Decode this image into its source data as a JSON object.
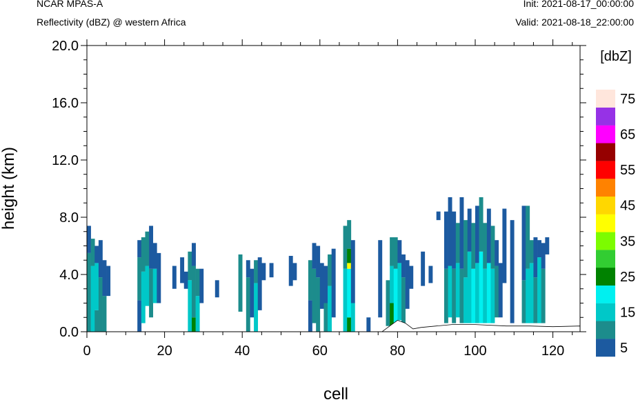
{
  "header": {
    "model": "NCAR MPAS-A",
    "field": "Reflectivity (dBZ) @ western Africa",
    "init": "Init: 2021-08-17_00:00:00",
    "valid": "Valid: 2021-08-18_22:00:00"
  },
  "colors": {
    "levels": [
      "#1c5aa0",
      "#1c8c8c",
      "#00c8c8",
      "#00f0f0",
      "#008200",
      "#32cd32",
      "#7cfc00",
      "#ffff00",
      "#ffd700",
      "#ff8200",
      "#ff0000",
      "#960000",
      "#ff00ff",
      "#9632e6",
      "#ffe6dc"
    ],
    "terrain": "#ffffff"
  },
  "chart_data": {
    "type": "heatmap",
    "title": "",
    "xlabel": "cell",
    "ylabel": "height (km)",
    "xlim": [
      0,
      127
    ],
    "ylim": [
      0,
      20
    ],
    "xticks": [
      0,
      20,
      40,
      60,
      80,
      100,
      120
    ],
    "yticks": [
      "0.0",
      "4.0",
      "8.0",
      "12.0",
      "16.0",
      "20.0"
    ],
    "grid": false,
    "legend": {
      "title": "[dbZ]",
      "placement": "right",
      "levels": [
        5,
        10,
        15,
        20,
        25,
        30,
        35,
        40,
        45,
        50,
        55,
        60,
        65,
        70,
        75
      ],
      "labels": [
        "5",
        "15",
        "25",
        "35",
        "45",
        "55",
        "65",
        "75"
      ]
    },
    "columns": [
      {
        "cell": 0.5,
        "segments": [
          [
            0.0,
            5.5,
            10
          ],
          [
            5.5,
            7.4,
            5
          ]
        ]
      },
      {
        "cell": 1.5,
        "segments": [
          [
            0.0,
            4.6,
            15
          ],
          [
            4.6,
            6.5,
            10
          ]
        ]
      },
      {
        "cell": 2.5,
        "segments": [
          [
            0.0,
            1.5,
            10
          ],
          [
            1.5,
            4.8,
            15
          ],
          [
            4.8,
            6.0,
            5
          ]
        ]
      },
      {
        "cell": 3.5,
        "segments": [
          [
            0.0,
            3.8,
            10
          ],
          [
            3.8,
            6.4,
            5
          ]
        ]
      },
      {
        "cell": 4.5,
        "segments": [
          [
            0.0,
            2.5,
            10
          ],
          [
            2.5,
            5.0,
            5
          ]
        ]
      },
      {
        "cell": 5.5,
        "segments": [
          [
            2.5,
            4.6,
            5
          ]
        ]
      },
      {
        "cell": 13.5,
        "segments": [
          [
            0.0,
            2.2,
            5
          ],
          [
            2.2,
            5.2,
            10
          ],
          [
            5.2,
            6.4,
            5
          ]
        ]
      },
      {
        "cell": 14.5,
        "segments": [
          [
            0.6,
            4.2,
            15
          ],
          [
            4.2,
            6.6,
            10
          ]
        ]
      },
      {
        "cell": 15.5,
        "segments": [
          [
            1.8,
            4.6,
            15
          ],
          [
            4.6,
            7.0,
            10
          ]
        ]
      },
      {
        "cell": 16.5,
        "segments": [
          [
            1.0,
            4.4,
            10
          ],
          [
            4.4,
            7.4,
            5
          ]
        ]
      },
      {
        "cell": 17.5,
        "segments": [
          [
            2.0,
            4.4,
            15
          ],
          [
            4.4,
            6.2,
            5
          ]
        ]
      },
      {
        "cell": 18.5,
        "segments": [
          [
            2.0,
            5.5,
            5
          ]
        ]
      },
      {
        "cell": 22.5,
        "segments": [
          [
            3.0,
            4.6,
            5
          ]
        ]
      },
      {
        "cell": 24.5,
        "segments": [
          [
            3.4,
            5.2,
            5
          ]
        ]
      },
      {
        "cell": 25.5,
        "segments": [
          [
            3.0,
            4.2,
            5
          ]
        ]
      },
      {
        "cell": 26.5,
        "segments": [
          [
            0.0,
            3.6,
            15
          ],
          [
            3.6,
            5.6,
            10
          ]
        ]
      },
      {
        "cell": 27.5,
        "segments": [
          [
            0.0,
            1.0,
            25
          ],
          [
            1.0,
            4.6,
            10
          ],
          [
            4.6,
            6.2,
            5
          ]
        ]
      },
      {
        "cell": 28.5,
        "segments": [
          [
            0.0,
            2.5,
            15
          ],
          [
            2.5,
            4.4,
            10
          ]
        ]
      },
      {
        "cell": 29.5,
        "segments": [
          [
            2.0,
            4.4,
            5
          ]
        ]
      },
      {
        "cell": 33.5,
        "segments": [
          [
            2.4,
            3.6,
            5
          ]
        ]
      },
      {
        "cell": 39.5,
        "segments": [
          [
            1.4,
            5.4,
            10
          ]
        ]
      },
      {
        "cell": 41.5,
        "segments": [
          [
            0.0,
            3.8,
            10
          ],
          [
            3.8,
            5.0,
            5
          ]
        ]
      },
      {
        "cell": 42.5,
        "segments": [
          [
            1.0,
            4.4,
            5
          ]
        ]
      },
      {
        "cell": 43.5,
        "segments": [
          [
            0.0,
            3.4,
            15
          ],
          [
            3.4,
            5.0,
            10
          ]
        ]
      },
      {
        "cell": 44.5,
        "segments": [
          [
            1.5,
            5.2,
            5
          ]
        ]
      },
      {
        "cell": 45.5,
        "segments": [
          [
            3.6,
            4.8,
            5
          ]
        ]
      },
      {
        "cell": 47.5,
        "segments": [
          [
            3.8,
            4.8,
            5
          ]
        ]
      },
      {
        "cell": 52.5,
        "segments": [
          [
            3.2,
            5.3,
            5
          ]
        ]
      },
      {
        "cell": 53.5,
        "segments": [
          [
            3.6,
            4.8,
            5
          ]
        ]
      },
      {
        "cell": 57.5,
        "segments": [
          [
            0.0,
            2.2,
            5
          ],
          [
            2.2,
            5.0,
            10
          ]
        ]
      },
      {
        "cell": 58.5,
        "segments": [
          [
            0.6,
            4.4,
            10
          ],
          [
            4.4,
            6.2,
            5
          ]
        ]
      },
      {
        "cell": 59.5,
        "segments": [
          [
            0.0,
            3.8,
            10
          ],
          [
            3.8,
            6.0,
            5
          ]
        ]
      },
      {
        "cell": 60.5,
        "segments": [
          [
            1.6,
            4.8,
            5
          ]
        ]
      },
      {
        "cell": 61.5,
        "segments": [
          [
            0.0,
            2.0,
            10
          ],
          [
            2.0,
            4.6,
            5
          ]
        ]
      },
      {
        "cell": 62.5,
        "segments": [
          [
            0.0,
            3.2,
            15
          ],
          [
            3.2,
            5.4,
            10
          ]
        ]
      },
      {
        "cell": 63.5,
        "segments": [
          [
            1.0,
            5.8,
            5
          ]
        ]
      },
      {
        "cell": 66.5,
        "segments": [
          [
            0.0,
            4.4,
            15
          ],
          [
            4.4,
            7.4,
            10
          ]
        ]
      },
      {
        "cell": 67.5,
        "segments": [
          [
            0.0,
            1.0,
            25
          ],
          [
            1.0,
            4.4,
            20
          ],
          [
            4.4,
            4.8,
            40
          ],
          [
            4.8,
            5.8,
            25
          ],
          [
            5.8,
            7.8,
            10
          ]
        ]
      },
      {
        "cell": 68.5,
        "segments": [
          [
            0.0,
            2.0,
            15
          ],
          [
            2.0,
            6.4,
            5
          ]
        ]
      },
      {
        "cell": 72.5,
        "segments": [
          [
            0.0,
            1.0,
            5
          ]
        ]
      },
      {
        "cell": 75.5,
        "segments": [
          [
            1.0,
            6.4,
            5
          ]
        ]
      },
      {
        "cell": 77.5,
        "segments": [
          [
            0.4,
            3.6,
            10
          ]
        ]
      },
      {
        "cell": 78.5,
        "segments": [
          [
            0.4,
            2.0,
            25
          ],
          [
            2.0,
            4.6,
            15
          ],
          [
            4.6,
            6.6,
            10
          ]
        ]
      },
      {
        "cell": 79.5,
        "segments": [
          [
            0.6,
            4.4,
            20
          ],
          [
            4.4,
            6.6,
            10
          ]
        ]
      },
      {
        "cell": 80.5,
        "segments": [
          [
            0.8,
            4.8,
            15
          ],
          [
            4.8,
            6.4,
            5
          ]
        ]
      },
      {
        "cell": 81.5,
        "segments": [
          [
            0.6,
            3.8,
            10
          ],
          [
            3.8,
            5.4,
            5
          ]
        ]
      },
      {
        "cell": 82.5,
        "segments": [
          [
            1.6,
            5.0,
            5
          ]
        ]
      },
      {
        "cell": 83.5,
        "segments": [
          [
            3.0,
            4.6,
            5
          ]
        ]
      },
      {
        "cell": 86.5,
        "segments": [
          [
            3.2,
            5.6,
            5
          ]
        ]
      },
      {
        "cell": 88.5,
        "segments": [
          [
            3.4,
            4.6,
            5
          ]
        ]
      },
      {
        "cell": 90.5,
        "segments": [
          [
            7.8,
            8.4,
            5
          ]
        ]
      },
      {
        "cell": 92.5,
        "segments": [
          [
            0.6,
            4.4,
            10
          ],
          [
            4.4,
            8.4,
            5
          ]
        ]
      },
      {
        "cell": 93.5,
        "segments": [
          [
            1.0,
            4.6,
            15
          ],
          [
            4.6,
            9.4,
            5
          ]
        ]
      },
      {
        "cell": 94.5,
        "segments": [
          [
            0.6,
            4.4,
            10
          ],
          [
            4.4,
            8.4,
            5
          ]
        ]
      },
      {
        "cell": 95.5,
        "segments": [
          [
            1.0,
            4.8,
            15
          ],
          [
            4.8,
            7.6,
            10
          ]
        ]
      },
      {
        "cell": 96.5,
        "segments": [
          [
            0.6,
            4.4,
            10
          ],
          [
            4.4,
            9.4,
            5
          ]
        ]
      },
      {
        "cell": 97.5,
        "segments": [
          [
            0.6,
            3.8,
            15
          ],
          [
            3.8,
            7.8,
            10
          ]
        ]
      },
      {
        "cell": 98.5,
        "segments": [
          [
            0.6,
            5.6,
            15
          ],
          [
            5.6,
            8.6,
            5
          ]
        ]
      },
      {
        "cell": 99.5,
        "segments": [
          [
            0.6,
            4.4,
            20
          ],
          [
            4.4,
            7.6,
            10
          ]
        ]
      },
      {
        "cell": 100.5,
        "segments": [
          [
            0.6,
            4.8,
            15
          ],
          [
            4.8,
            8.8,
            5
          ]
        ]
      },
      {
        "cell": 101.5,
        "segments": [
          [
            0.6,
            5.6,
            20
          ],
          [
            5.6,
            9.4,
            10
          ]
        ]
      },
      {
        "cell": 102.5,
        "segments": [
          [
            0.6,
            4.4,
            15
          ],
          [
            4.4,
            7.6,
            10
          ]
        ]
      },
      {
        "cell": 103.5,
        "segments": [
          [
            0.6,
            4.8,
            20
          ],
          [
            4.8,
            8.6,
            5
          ]
        ]
      },
      {
        "cell": 104.5,
        "segments": [
          [
            0.6,
            4.4,
            15
          ],
          [
            4.4,
            7.4,
            10
          ]
        ]
      },
      {
        "cell": 105.5,
        "segments": [
          [
            1.0,
            4.6,
            10
          ],
          [
            4.6,
            6.4,
            5
          ]
        ]
      },
      {
        "cell": 106.5,
        "segments": [
          [
            1.0,
            4.8,
            5
          ]
        ]
      },
      {
        "cell": 107.5,
        "segments": [
          [
            3.4,
            8.6,
            5
          ]
        ]
      },
      {
        "cell": 109.5,
        "segments": [
          [
            0.6,
            7.8,
            5
          ]
        ]
      },
      {
        "cell": 112.5,
        "segments": [
          [
            0.6,
            3.6,
            10
          ],
          [
            3.6,
            8.8,
            5
          ]
        ]
      },
      {
        "cell": 113.5,
        "segments": [
          [
            0.6,
            4.4,
            15
          ],
          [
            4.4,
            8.8,
            10
          ]
        ]
      },
      {
        "cell": 114.5,
        "segments": [
          [
            0.6,
            4.8,
            15
          ],
          [
            4.8,
            6.4,
            10
          ]
        ]
      },
      {
        "cell": 115.5,
        "segments": [
          [
            0.6,
            3.8,
            10
          ],
          [
            3.8,
            6.6,
            5
          ]
        ]
      },
      {
        "cell": 116.5,
        "segments": [
          [
            0.6,
            5.2,
            15
          ],
          [
            5.2,
            6.4,
            5
          ]
        ]
      },
      {
        "cell": 117.5,
        "segments": [
          [
            0.6,
            4.4,
            10
          ],
          [
            4.4,
            6.2,
            5
          ]
        ]
      },
      {
        "cell": 118.5,
        "segments": [
          [
            5.4,
            6.6,
            5
          ]
        ]
      }
    ],
    "terrain": [
      [
        0,
        0.0
      ],
      [
        76,
        0.0
      ],
      [
        78,
        0.4
      ],
      [
        80,
        0.8
      ],
      [
        82,
        0.6
      ],
      [
        84,
        0.2
      ],
      [
        86,
        0.3
      ],
      [
        90,
        0.4
      ],
      [
        94,
        0.5
      ],
      [
        100,
        0.5
      ],
      [
        108,
        0.4
      ],
      [
        114,
        0.4
      ],
      [
        120,
        0.35
      ],
      [
        127,
        0.4
      ]
    ]
  }
}
